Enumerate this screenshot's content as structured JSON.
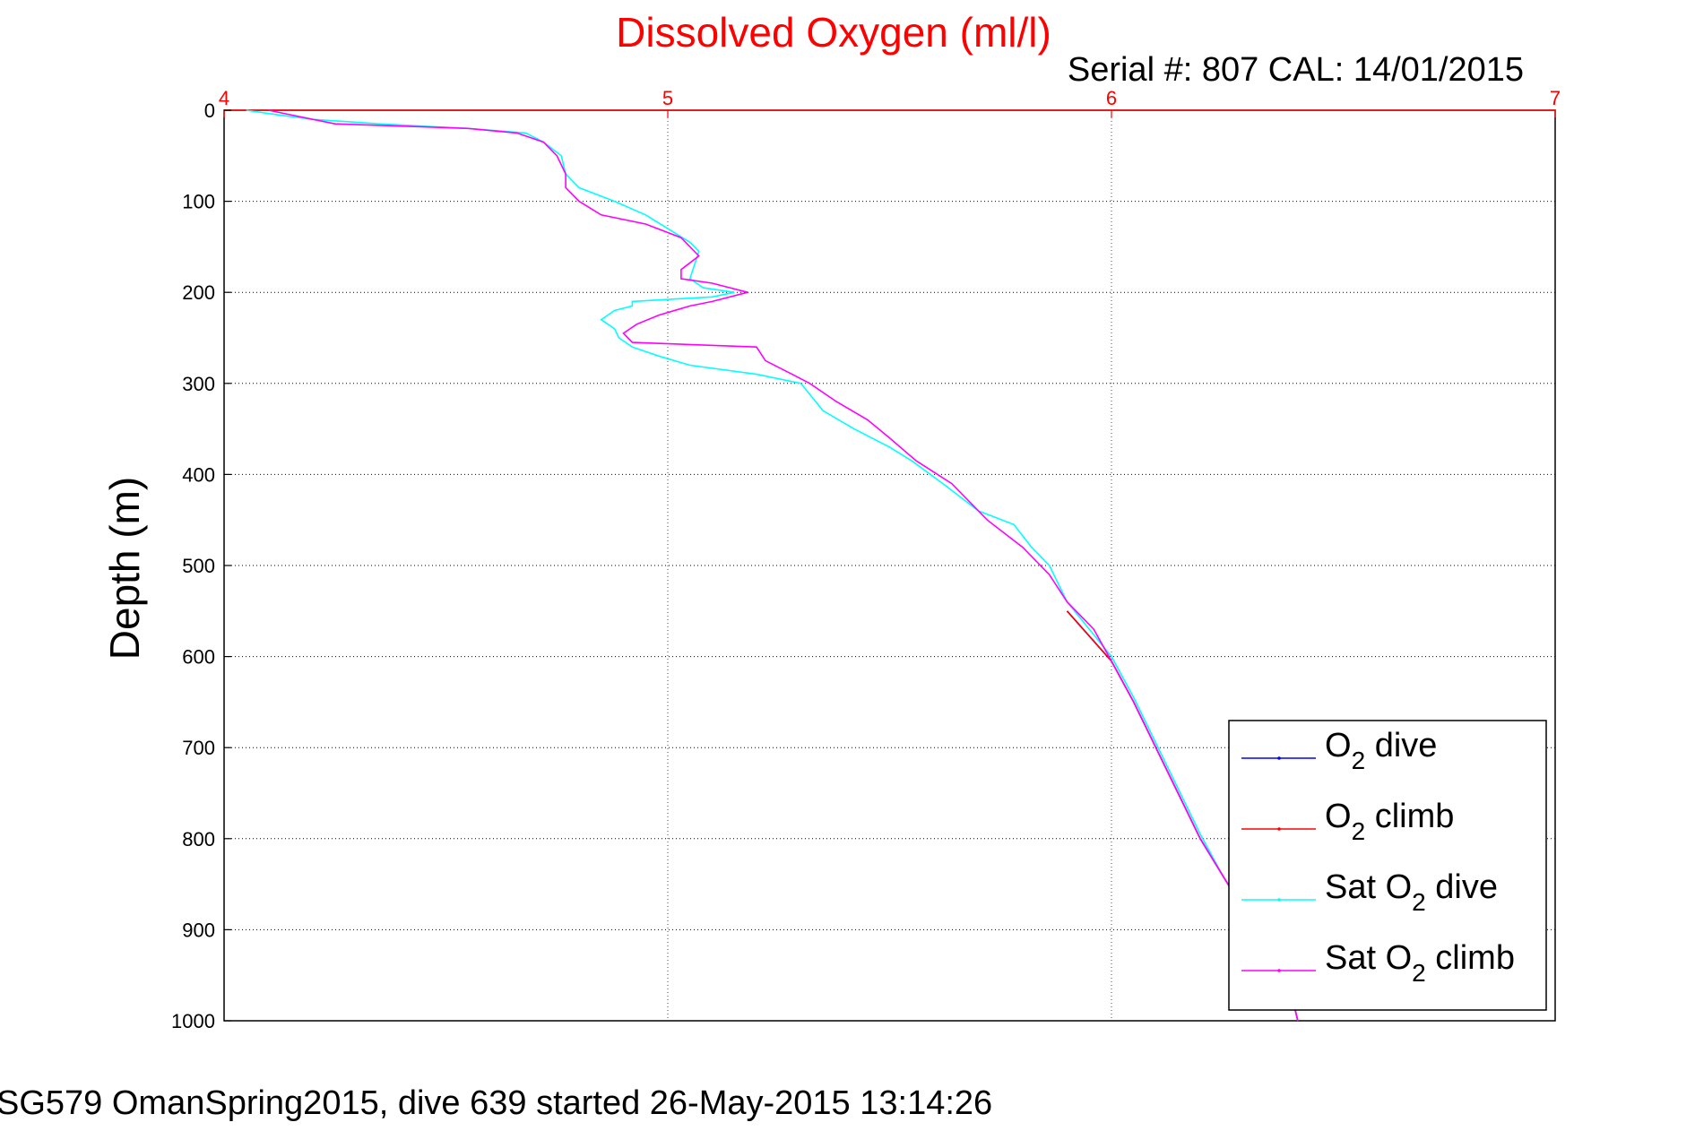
{
  "chart_data": {
    "type": "line",
    "title": "Dissolved Oxygen (ml/l)",
    "subtitle": "Serial #: 807  CAL: 14/01/2015",
    "xlabel": "",
    "ylabel": "Depth (m)",
    "xlim": [
      4,
      7
    ],
    "ylim": [
      0,
      1000
    ],
    "y_reversed": true,
    "x_axis_position": "top",
    "x_ticks": [
      "4",
      "5",
      "6",
      "7"
    ],
    "y_ticks": [
      "0",
      "100",
      "200",
      "300",
      "400",
      "500",
      "600",
      "700",
      "800",
      "900",
      "1000"
    ],
    "grid": true,
    "legend_position": "bottom-right",
    "legend": [
      {
        "pre": "O",
        "sub": "2",
        "post": " dive",
        "color": "#0000ff"
      },
      {
        "pre": "O",
        "sub": "2",
        "post": " climb",
        "color": "#ff0000"
      },
      {
        "pre": "Sat O",
        "sub": "2",
        "post": " dive",
        "color": "#00ffff"
      },
      {
        "pre": "Sat O",
        "sub": "2",
        "post": " climb",
        "color": "#ff00ff"
      }
    ],
    "series": [
      {
        "name": "O2 dive",
        "color": "#0000ff",
        "points": [
          [
            5.9,
            550
          ],
          [
            6.0,
            605
          ],
          [
            6.05,
            650
          ],
          [
            6.1,
            700
          ],
          [
            6.15,
            750
          ],
          [
            6.2,
            800
          ],
          [
            6.25,
            840
          ],
          [
            6.3,
            880
          ],
          [
            6.35,
            920
          ],
          [
            6.4,
            960
          ],
          [
            6.42,
            1000
          ]
        ]
      },
      {
        "name": "O2 climb",
        "color": "#ff0000",
        "points": [
          [
            5.9,
            550
          ],
          [
            6.0,
            605
          ],
          [
            6.05,
            650
          ],
          [
            6.1,
            700
          ],
          [
            6.15,
            750
          ],
          [
            6.2,
            800
          ],
          [
            6.25,
            840
          ],
          [
            6.3,
            880
          ],
          [
            6.35,
            920
          ],
          [
            6.4,
            960
          ],
          [
            6.42,
            1000
          ]
        ]
      },
      {
        "name": "Sat O2 dive",
        "color": "#00ffff",
        "points": [
          [
            4.05,
            0
          ],
          [
            4.12,
            5
          ],
          [
            4.2,
            10
          ],
          [
            4.35,
            15
          ],
          [
            4.55,
            20
          ],
          [
            4.68,
            25
          ],
          [
            4.72,
            35
          ],
          [
            4.76,
            50
          ],
          [
            4.77,
            70
          ],
          [
            4.8,
            85
          ],
          [
            4.88,
            100
          ],
          [
            4.95,
            115
          ],
          [
            5.0,
            130
          ],
          [
            5.05,
            145
          ],
          [
            5.07,
            155
          ],
          [
            5.06,
            170
          ],
          [
            5.05,
            185
          ],
          [
            5.08,
            195
          ],
          [
            5.15,
            200
          ],
          [
            5.1,
            205
          ],
          [
            4.92,
            210
          ],
          [
            4.92,
            215
          ],
          [
            4.88,
            220
          ],
          [
            4.85,
            230
          ],
          [
            4.88,
            240
          ],
          [
            4.89,
            250
          ],
          [
            4.92,
            260
          ],
          [
            4.98,
            270
          ],
          [
            5.05,
            280
          ],
          [
            5.2,
            290
          ],
          [
            5.3,
            300
          ],
          [
            5.35,
            330
          ],
          [
            5.42,
            350
          ],
          [
            5.5,
            370
          ],
          [
            5.55,
            385
          ],
          [
            5.62,
            410
          ],
          [
            5.7,
            440
          ],
          [
            5.78,
            455
          ],
          [
            5.82,
            480
          ],
          [
            5.86,
            500
          ],
          [
            5.9,
            540
          ],
          [
            5.95,
            570
          ],
          [
            6.0,
            600
          ],
          [
            6.05,
            645
          ],
          [
            6.1,
            695
          ],
          [
            6.15,
            745
          ],
          [
            6.2,
            795
          ],
          [
            6.25,
            840
          ],
          [
            6.3,
            880
          ],
          [
            6.35,
            920
          ],
          [
            6.4,
            960
          ],
          [
            6.42,
            1000
          ]
        ]
      },
      {
        "name": "Sat O2 climb",
        "color": "#ff00ff",
        "points": [
          [
            4.1,
            0
          ],
          [
            4.15,
            5
          ],
          [
            4.2,
            10
          ],
          [
            4.25,
            15
          ],
          [
            4.55,
            20
          ],
          [
            4.66,
            25
          ],
          [
            4.72,
            35
          ],
          [
            4.75,
            50
          ],
          [
            4.77,
            70
          ],
          [
            4.77,
            85
          ],
          [
            4.8,
            100
          ],
          [
            4.85,
            115
          ],
          [
            4.95,
            125
          ],
          [
            5.03,
            140
          ],
          [
            5.07,
            160
          ],
          [
            5.03,
            175
          ],
          [
            5.03,
            185
          ],
          [
            5.1,
            190
          ],
          [
            5.18,
            200
          ],
          [
            5.1,
            210
          ],
          [
            5.05,
            215
          ],
          [
            4.98,
            225
          ],
          [
            4.93,
            235
          ],
          [
            4.9,
            245
          ],
          [
            4.92,
            255
          ],
          [
            5.2,
            260
          ],
          [
            5.22,
            275
          ],
          [
            5.28,
            290
          ],
          [
            5.32,
            300
          ],
          [
            5.38,
            320
          ],
          [
            5.45,
            340
          ],
          [
            5.5,
            360
          ],
          [
            5.56,
            385
          ],
          [
            5.64,
            410
          ],
          [
            5.72,
            450
          ],
          [
            5.8,
            480
          ],
          [
            5.86,
            510
          ],
          [
            5.9,
            540
          ],
          [
            5.96,
            570
          ],
          [
            6.0,
            605
          ],
          [
            6.05,
            650
          ],
          [
            6.1,
            700
          ],
          [
            6.15,
            750
          ],
          [
            6.2,
            800
          ],
          [
            6.25,
            840
          ],
          [
            6.3,
            880
          ],
          [
            6.35,
            920
          ],
          [
            6.4,
            960
          ],
          [
            6.42,
            1000
          ]
        ]
      }
    ]
  },
  "footer": "SG579 OmanSpring2015, dive 639 started 26-May-2015 13:14:26"
}
